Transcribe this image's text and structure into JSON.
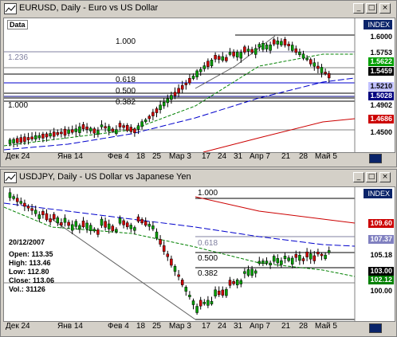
{
  "top": {
    "title": "EURUSD, Daily - Euro vs US Dollar",
    "data_label": "Data",
    "index_label": "INDEX",
    "right_axis": [
      "1.6000",
      "1.5753",
      "1.5622",
      "1.5459",
      "1.5210",
      "1.5028",
      "1.4902",
      "1.4686",
      "1.4500"
    ],
    "fib_labels": [
      "1.000",
      "1.236",
      "0.618",
      "0.500",
      "0.382",
      "1.000"
    ],
    "x_labels": [
      "Дек 24",
      "Янв 14",
      "Фев 4",
      "18",
      "25",
      "Мар 3",
      "17",
      "24",
      "31",
      "Апр 7",
      "21",
      "28",
      "Май 5"
    ],
    "colors": {
      "bull": "#00a000",
      "bear": "#d00000",
      "ma_green": "#008000",
      "ma_blue": "#0000cc",
      "ma_red": "#cc0000"
    }
  },
  "bottom": {
    "title": "USDJPY, Daily - US Dollar vs Japanese Yen",
    "index_label": "INDEX",
    "right_axis": [
      "109.60",
      "107.37",
      "105.18",
      "103.00",
      "102.12",
      "100.00"
    ],
    "fib_labels": [
      "1.000",
      "0.618",
      "0.500",
      "0.382"
    ],
    "x_labels": [
      "Дек 24",
      "Янв 14",
      "Фев 4",
      "18",
      "25",
      "Мар 3",
      "17",
      "24",
      "31",
      "Апр 7",
      "21",
      "28",
      "Май 5"
    ],
    "ohlc": {
      "date": "20/12/2007",
      "open": "Open: 113.35",
      "high": "High: 113.46",
      "low": "Low: 112.80",
      "close": "Close: 113.06",
      "vol": "Vol.: 31126"
    }
  },
  "window_buttons": {
    "minimize": "_",
    "maximize": "□",
    "close": "×"
  }
}
